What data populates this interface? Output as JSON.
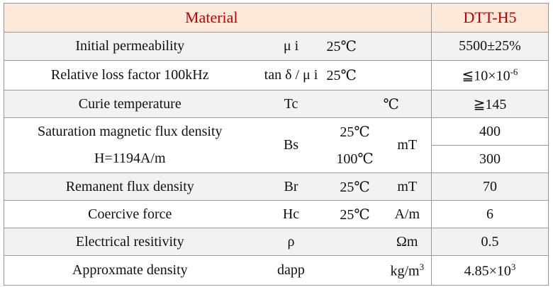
{
  "header": {
    "material": "Material",
    "grade": "DTT-H5"
  },
  "rows": [
    {
      "property": "Initial permeability",
      "symbol": "μ i",
      "condition": "25℃",
      "value": "5500±25%"
    },
    {
      "property": "Relative loss factor 100kHz",
      "symbol": "tan δ / μ i",
      "condition": "25℃",
      "value": {
        "base": "≦10×10",
        "sup": "-6"
      }
    },
    {
      "property": "Curie temperature",
      "symbol": "Tc",
      "unit": "℃",
      "value": "≧145"
    },
    {
      "property": [
        "Saturation magnetic flux density",
        "H=1194A/m"
      ],
      "symbol": "Bs",
      "condition": [
        "25℃",
        "100℃"
      ],
      "unit": "mT",
      "value": [
        "400",
        "300"
      ]
    },
    {
      "property": "Remanent flux density",
      "symbol": "Br",
      "condition": "25℃",
      "unit": "mT",
      "value": "70"
    },
    {
      "property": "Coercive force",
      "symbol": "Hc",
      "condition": "25℃",
      "unit": "A/m",
      "value": "6"
    },
    {
      "property": "Electrical resitivity",
      "symbol": "ρ",
      "unit": "Ωm",
      "value": "0.5"
    },
    {
      "property": "Approxmate density",
      "symbol": "dapp",
      "unit": {
        "base": "kg/m",
        "sup": "3"
      },
      "value": {
        "base": "4.85×10",
        "sup": "3"
      }
    }
  ]
}
